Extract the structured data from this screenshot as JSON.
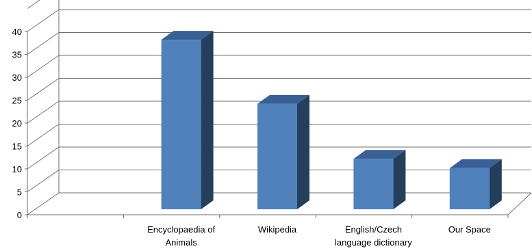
{
  "chart_data": {
    "type": "bar",
    "style": "3d-column",
    "categories": [
      "",
      "Encyclopaedia of Animals",
      "Wikipedia",
      "English/Czech language dictionary",
      "Our Space"
    ],
    "category_label_lines": [
      [],
      [
        "Encyclopaedia of",
        "Animals"
      ],
      [
        "Wikipedia"
      ],
      [
        "English/Czech",
        "language dictionary"
      ],
      [
        "Our Space"
      ]
    ],
    "values": [
      0,
      37,
      23,
      11,
      9
    ],
    "ylim": [
      0,
      40
    ],
    "yticks": [
      "0",
      "5",
      "10",
      "15",
      "20",
      "25",
      "30",
      "35",
      "40"
    ],
    "grid": true,
    "legend": false,
    "title": "",
    "xlabel": "",
    "ylabel": "",
    "colors": {
      "bar_front": "#4f81bd",
      "bar_top": "#3a5f95",
      "bar_side": "#243f5c",
      "grid": "#6e6e6e",
      "axis": "#6e6e6e"
    }
  }
}
